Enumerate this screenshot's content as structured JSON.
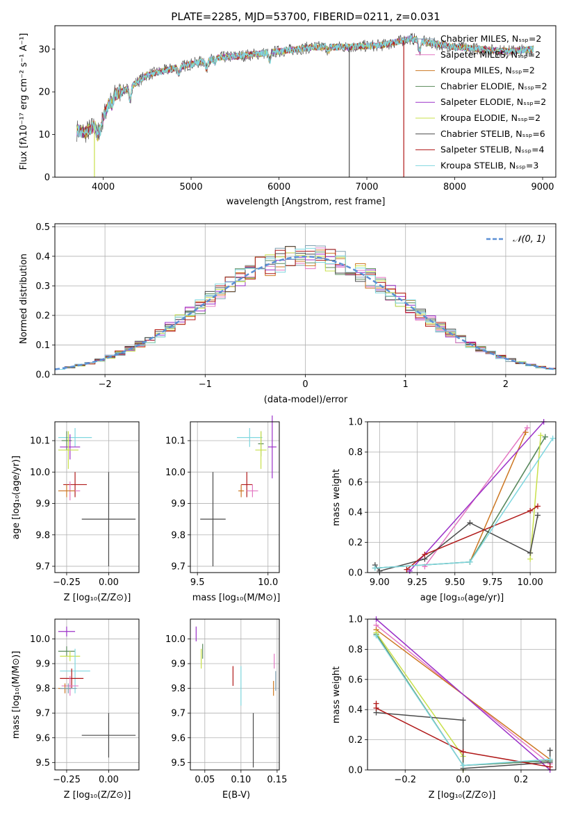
{
  "chart_data": [
    {
      "type": "line",
      "title": "PLATE=2285, MJD=53700, FIBERID=0211, z=0.031",
      "xlabel": "wavelength [Angstrom, rest frame]",
      "ylabel": "Flux [fλ10⁻¹⁷ erg cm⁻² s⁻¹ A⁻¹]",
      "xlim": [
        3450,
        9150
      ],
      "ylim": [
        0,
        35.5
      ],
      "xticks": [
        4000,
        5000,
        6000,
        7000,
        8000,
        9000
      ],
      "yticks": [
        0,
        10,
        20,
        30
      ],
      "grid": false,
      "legend_position": "right",
      "spectrum_range": [
        3700,
        8900
      ],
      "spectrum_anchors": {
        "x": [
          3700,
          3800,
          3900,
          4000,
          4100,
          4200,
          4300,
          4500,
          4700,
          5000,
          5300,
          5600,
          6000,
          6400,
          6800,
          7200,
          7500,
          7700,
          8000,
          8300,
          8600,
          8900
        ],
        "y": [
          11,
          10.5,
          12,
          14,
          19,
          20,
          21,
          24,
          25,
          26.5,
          28,
          28.5,
          29.5,
          30.5,
          30.5,
          31,
          32.5,
          31.5,
          30.5,
          30,
          29.5,
          30
        ]
      },
      "dropouts": [
        {
          "series": "Kroupa ELODIE",
          "x": 3900,
          "y": 0
        },
        {
          "series": "Chabrier STELIB",
          "x": 6800,
          "y": 0
        },
        {
          "series": "Salpeter STELIB",
          "x": 7420,
          "y": 0
        }
      ],
      "series": [
        {
          "name": "Chabrier MILES, Nₛₛₚ=2",
          "color": "#7f9fb0"
        },
        {
          "name": "Salpeter MILES, Nₛₛₚ=2",
          "color": "#e377c2"
        },
        {
          "name": "Kroupa MILES, Nₛₛₚ=2",
          "color": "#cc7722"
        },
        {
          "name": "Chabrier ELODIE, Nₛₛₚ=2",
          "color": "#5a8a5a"
        },
        {
          "name": "Salpeter ELODIE, Nₛₛₚ=2",
          "color": "#9b30c8"
        },
        {
          "name": "Kroupa ELODIE, Nₛₛₚ=2",
          "color": "#c8e04a"
        },
        {
          "name": "Chabrier STELIB, Nₛₛₚ=6",
          "color": "#4a4a4a"
        },
        {
          "name": "Salpeter STELIB, Nₛₛₚ=4",
          "color": "#b01818"
        },
        {
          "name": "Kroupa STELIB, Nₛₛₚ=3",
          "color": "#7fd7df"
        }
      ]
    },
    {
      "type": "line",
      "xlabel": "(data-model)/error",
      "ylabel": "Normed distribution",
      "xlim": [
        -2.5,
        2.5
      ],
      "ylim": [
        0,
        0.51
      ],
      "xticks": [
        -2,
        -1,
        0,
        1,
        2
      ],
      "yticks": [
        0.0,
        0.1,
        0.2,
        0.3,
        0.4,
        0.5
      ],
      "grid": true,
      "legend_position": "top-right",
      "legend": "𝒩(0, 1)",
      "normal_curve": {
        "mu": 0,
        "sigma": 1,
        "color": "#5b8fd4"
      },
      "bin_width": 0.1,
      "series_colors": [
        "#7f9fb0",
        "#e377c2",
        "#cc7722",
        "#5a8a5a",
        "#9b30c8",
        "#c8e04a",
        "#4a4a4a",
        "#b01818",
        "#7fd7df"
      ]
    },
    {
      "type": "scatter",
      "xlabel": "Z [log₁₀(Z/Z⊙)]",
      "ylabel": "age  [log₁₀(age/yr)]",
      "xlim": [
        -0.32,
        0.18
      ],
      "ylim": [
        9.68,
        10.16
      ],
      "xticks": [
        -0.25,
        0.0
      ],
      "yticks": [
        9.7,
        9.8,
        9.9,
        10.0,
        10.1
      ],
      "grid": true,
      "points": [
        {
          "x": -0.2,
          "y": 10.11,
          "xerr": 0.1,
          "yerr": 0.03,
          "color": "#7fd7df"
        },
        {
          "x": -0.25,
          "y": 10.1,
          "xerr": 0.03,
          "yerr": 0.03,
          "color": "#5a8a5a"
        },
        {
          "x": -0.23,
          "y": 10.08,
          "xerr": 0.06,
          "yerr": 0.04,
          "color": "#9b30c8"
        },
        {
          "x": -0.24,
          "y": 10.07,
          "xerr": 0.06,
          "yerr": 0.06,
          "color": "#c8e04a"
        },
        {
          "x": -0.2,
          "y": 9.96,
          "xerr": 0.07,
          "yerr": 0.04,
          "color": "#b01818"
        },
        {
          "x": -0.23,
          "y": 9.94,
          "xerr": 0.06,
          "yerr": 0.03,
          "color": "#e377c2"
        },
        {
          "x": -0.25,
          "y": 9.94,
          "xerr": 0.05,
          "yerr": 0.02,
          "color": "#cc7722"
        },
        {
          "x": 0.0,
          "y": 9.85,
          "xerr": 0.16,
          "yerr": 0.15,
          "color": "#4a4a4a"
        }
      ]
    },
    {
      "type": "scatter",
      "xlabel": "mass [log₁₀(M/M⊙)]",
      "xlim": [
        9.45,
        10.08
      ],
      "ylim": [
        9.68,
        10.16
      ],
      "xticks": [
        9.5,
        10.0
      ],
      "yticks": [
        9.7,
        9.8,
        9.9,
        10.0,
        10.1
      ],
      "grid": true,
      "points": [
        {
          "x": 9.87,
          "y": 10.11,
          "xerr": 0.09,
          "yerr": 0.03,
          "color": "#7fd7df"
        },
        {
          "x": 9.95,
          "y": 10.09,
          "xerr": 0.02,
          "yerr": 0.04,
          "color": "#5a8a5a"
        },
        {
          "x": 10.03,
          "y": 10.08,
          "xerr": 0.03,
          "yerr": 0.1,
          "color": "#9b30c8"
        },
        {
          "x": 9.95,
          "y": 10.07,
          "xerr": 0.04,
          "yerr": 0.06,
          "color": "#c8e04a"
        },
        {
          "x": 9.85,
          "y": 9.96,
          "xerr": 0.04,
          "yerr": 0.04,
          "color": "#b01818"
        },
        {
          "x": 9.89,
          "y": 9.94,
          "xerr": 0.04,
          "yerr": 0.02,
          "color": "#e377c2"
        },
        {
          "x": 9.81,
          "y": 9.94,
          "xerr": 0.02,
          "yerr": 0.02,
          "color": "#cc7722"
        },
        {
          "x": 9.61,
          "y": 9.85,
          "xerr": 0.09,
          "yerr": 0.15,
          "color": "#4a4a4a"
        }
      ]
    },
    {
      "type": "line",
      "xlabel": "age  [log₁₀(age/yr)]",
      "ylabel": "mass weight",
      "xlim": [
        8.92,
        10.17
      ],
      "ylim": [
        0,
        1
      ],
      "xticks": [
        9.0,
        9.25,
        9.5,
        9.75,
        10.0
      ],
      "yticks": [
        0.0,
        0.2,
        0.4,
        0.6,
        0.8,
        1.0
      ],
      "grid": true,
      "series": [
        {
          "color": "#7f9fb0",
          "x": [
            8.97,
            9.6,
            10.1
          ],
          "y": [
            0.03,
            0.07,
            0.9
          ]
        },
        {
          "color": "#e377c2",
          "x": [
            9.3,
            9.98
          ],
          "y": [
            0.04,
            0.96
          ]
        },
        {
          "color": "#cc7722",
          "x": [
            9.6,
            9.97
          ],
          "y": [
            0.07,
            0.93
          ]
        },
        {
          "color": "#5a8a5a",
          "x": [
            8.97,
            9.6,
            10.1
          ],
          "y": [
            0.03,
            0.07,
            0.9
          ]
        },
        {
          "color": "#9b30c8",
          "x": [
            9.2,
            10.09
          ],
          "y": [
            0.01,
            1.0
          ]
        },
        {
          "color": "#c8e04a",
          "x": [
            10.0,
            10.07
          ],
          "y": [
            0.09,
            0.91
          ]
        },
        {
          "color": "#4a4a4a",
          "x": [
            8.97,
            9.0,
            9.3,
            9.6,
            10.0,
            10.05
          ],
          "y": [
            0.05,
            0.01,
            0.09,
            0.33,
            0.13,
            0.38
          ]
        },
        {
          "color": "#b01818",
          "x": [
            9.18,
            9.3,
            10.0,
            10.05
          ],
          "y": [
            0.02,
            0.12,
            0.41,
            0.44
          ]
        },
        {
          "color": "#7fd7df",
          "x": [
            8.97,
            9.6,
            10.15
          ],
          "y": [
            0.03,
            0.07,
            0.89
          ]
        }
      ]
    },
    {
      "type": "scatter",
      "xlabel": "Z [log₁₀(Z/Z⊙)]",
      "ylabel": "mass [log₁₀(M/M⊙)]",
      "xlim": [
        -0.32,
        0.18
      ],
      "ylim": [
        9.47,
        10.08
      ],
      "xticks": [
        -0.25,
        0.0
      ],
      "yticks": [
        9.5,
        9.6,
        9.7,
        9.8,
        9.9,
        10.0
      ],
      "grid": true,
      "points": [
        {
          "x": -0.25,
          "y": 10.03,
          "xerr": 0.05,
          "yerr": 0.02,
          "color": "#9b30c8"
        },
        {
          "x": -0.25,
          "y": 9.95,
          "xerr": 0.05,
          "yerr": 0.02,
          "color": "#5a8a5a"
        },
        {
          "x": -0.23,
          "y": 9.93,
          "xerr": 0.06,
          "yerr": 0.02,
          "color": "#c8e04a"
        },
        {
          "x": -0.2,
          "y": 9.87,
          "xerr": 0.09,
          "yerr": 0.09,
          "color": "#7fd7df"
        },
        {
          "x": -0.22,
          "y": 9.84,
          "xerr": 0.07,
          "yerr": 0.04,
          "color": "#b01818"
        },
        {
          "x": -0.23,
          "y": 9.81,
          "xerr": 0.05,
          "yerr": 0.04,
          "color": "#e377c2"
        },
        {
          "x": -0.26,
          "y": 9.8,
          "xerr": 0.04,
          "yerr": 0.02,
          "color": "#cc7722"
        },
        {
          "x": -0.24,
          "y": 9.8,
          "xerr": 0.05,
          "yerr": 0.02,
          "color": "#7f9fb0"
        },
        {
          "x": 0.0,
          "y": 9.61,
          "xerr": 0.16,
          "yerr": 0.09,
          "color": "#4a4a4a"
        }
      ]
    },
    {
      "type": "scatter",
      "xlabel": "E(B-V)",
      "xlim": [
        0.03,
        0.153
      ],
      "ylim": [
        9.47,
        10.08
      ],
      "xticks": [
        0.05,
        0.1,
        0.15
      ],
      "yticks": [
        9.5,
        9.6,
        9.7,
        9.8,
        9.9,
        10.0
      ],
      "grid": true,
      "points": [
        {
          "x": 0.038,
          "y": 10.02,
          "yerr": 0.03,
          "color": "#9b30c8"
        },
        {
          "x": 0.047,
          "y": 9.95,
          "yerr": 0.03,
          "color": "#5a8a5a"
        },
        {
          "x": 0.045,
          "y": 9.92,
          "yerr": 0.04,
          "color": "#c8e04a"
        },
        {
          "x": 0.1,
          "y": 9.81,
          "yerr": 0.08,
          "color": "#7fd7df"
        },
        {
          "x": 0.089,
          "y": 9.85,
          "yerr": 0.04,
          "color": "#b01818"
        },
        {
          "x": 0.146,
          "y": 9.91,
          "yerr": 0.03,
          "color": "#e377c2"
        },
        {
          "x": 0.145,
          "y": 9.8,
          "yerr": 0.03,
          "color": "#cc7722"
        },
        {
          "x": 0.148,
          "y": 9.83,
          "yerr": 0.04,
          "color": "#7f9fb0"
        },
        {
          "x": 0.117,
          "y": 9.59,
          "yerr": 0.11,
          "color": "#4a4a4a"
        }
      ]
    },
    {
      "type": "line",
      "xlabel": "Z [log₁₀(Z/Z⊙)]",
      "ylabel": "mass weight",
      "xlim": [
        -0.33,
        0.32
      ],
      "ylim": [
        0,
        1
      ],
      "xticks": [
        -0.2,
        0.0,
        0.2
      ],
      "yticks": [
        0.0,
        0.2,
        0.4,
        0.6,
        0.8,
        1.0
      ],
      "grid": true,
      "series": [
        {
          "color": "#7f9fb0",
          "x": [
            -0.3,
            0.0,
            0.3
          ],
          "y": [
            0.9,
            0.03,
            0.06
          ]
        },
        {
          "color": "#e377c2",
          "x": [
            -0.3,
            0.3
          ],
          "y": [
            0.96,
            0.04
          ]
        },
        {
          "color": "#cc7722",
          "x": [
            -0.3,
            0.3
          ],
          "y": [
            0.93,
            0.07
          ]
        },
        {
          "color": "#5a8a5a",
          "x": [
            -0.3,
            0.0,
            0.3
          ],
          "y": [
            0.9,
            0.03,
            0.06
          ]
        },
        {
          "color": "#9b30c8",
          "x": [
            -0.3,
            0.3
          ],
          "y": [
            1.0,
            0.0
          ]
        },
        {
          "color": "#c8e04a",
          "x": [
            -0.3,
            0.0,
            0.0
          ],
          "y": [
            0.91,
            0.09,
            0.0
          ]
        },
        {
          "color": "#4a4a4a",
          "x": [
            -0.3,
            0.0,
            0.0,
            0.3,
            0.3
          ],
          "y": [
            0.38,
            0.33,
            0.01,
            0.05,
            0.13
          ]
        },
        {
          "color": "#b01818",
          "x": [
            -0.3,
            -0.3,
            0.0,
            0.3
          ],
          "y": [
            0.44,
            0.41,
            0.12,
            0.02
          ]
        },
        {
          "color": "#7fd7df",
          "x": [
            -0.3,
            0.0,
            0.3
          ],
          "y": [
            0.89,
            0.03,
            0.07
          ]
        }
      ]
    }
  ]
}
